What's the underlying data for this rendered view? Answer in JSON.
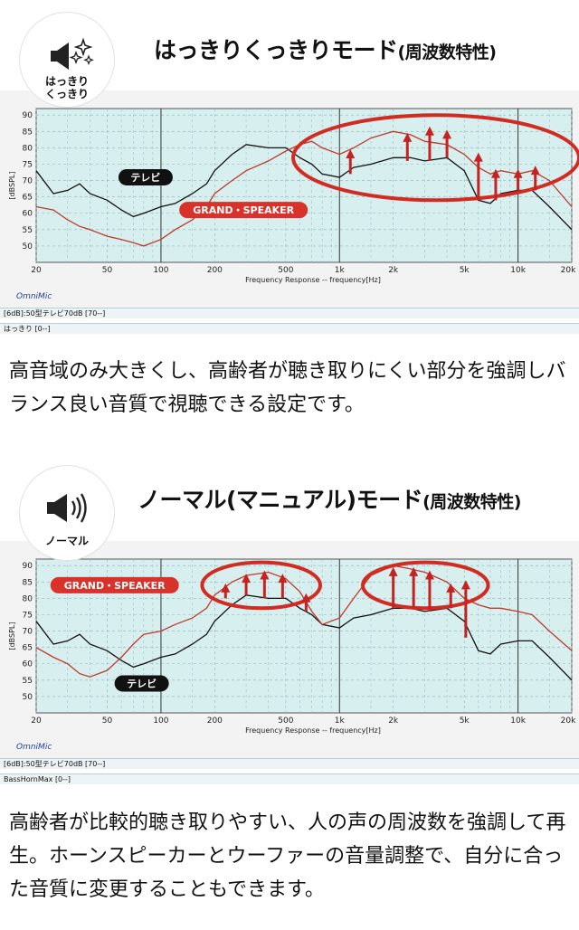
{
  "sections": [
    {
      "badge_label": "はっきり\nくっきり",
      "badge_icon": "speaker-sparkle-icon",
      "title_main": "はっきりくっきりモード",
      "title_paren": "(周波数特性)",
      "legend_rows": [
        "[6dB]:50型テレビ70dB [70--]",
        "はっきり [0--]"
      ],
      "description": "高音域のみ大きくし、高齢者が聴き取りにくい部分を強調しバランス良い音質で視聴できる設定です。"
    },
    {
      "badge_label": "ノーマル",
      "badge_icon": "speaker-sound-icon",
      "title_main": "ノーマル(マニュアル)モード",
      "title_paren": "(周波数特性)",
      "legend_rows": [
        "[6dB]:50型テレビ70dB [70--]",
        "BassHornMax [0--]"
      ],
      "description": "高齢者が比較的聴き取りやすい、人の声の周波数を強調して再生。ホーンスピーカーとウーファーの音量調整で、自分に合った音質に変更することもできます。"
    }
  ],
  "chart_data": [
    {
      "type": "line",
      "xscale": "log",
      "xlim": [
        20,
        20000
      ],
      "ylim": [
        45,
        92
      ],
      "xticks": [
        20,
        50,
        100,
        200,
        500,
        1000,
        2000,
        5000,
        10000,
        20000
      ],
      "xtick_labels": [
        "20",
        "50",
        "100",
        "200",
        "500",
        "1k",
        "2k",
        "5k",
        "10k",
        "20k"
      ],
      "yticks": [
        50,
        55,
        60,
        65,
        70,
        75,
        80,
        85,
        90
      ],
      "xlabel": "Frequency Response -- frequency[Hz]",
      "ylabel": "[dBSPL]",
      "brand": "OmniMic",
      "series": [
        {
          "name": "テレビ",
          "color": "#111111",
          "x": [
            20,
            25,
            30,
            35,
            40,
            50,
            60,
            70,
            80,
            100,
            120,
            150,
            180,
            200,
            250,
            300,
            400,
            500,
            600,
            700,
            800,
            1000,
            1200,
            1500,
            2000,
            2500,
            3000,
            4000,
            5000,
            6000,
            7000,
            8000,
            10000,
            12000,
            15000,
            20000
          ],
          "y": [
            73,
            66,
            67,
            69,
            66,
            64,
            61,
            59,
            60,
            62,
            63,
            66,
            69,
            73,
            78,
            81,
            80,
            80,
            77,
            75,
            72,
            71,
            74,
            75,
            77,
            77,
            76,
            77,
            73,
            64,
            63,
            66,
            67,
            67,
            62,
            55
          ]
        },
        {
          "name": "GRAND・SPEAKER",
          "color": "#c0392b",
          "x": [
            20,
            25,
            30,
            35,
            40,
            50,
            60,
            70,
            80,
            100,
            120,
            150,
            180,
            200,
            250,
            300,
            400,
            500,
            600,
            700,
            800,
            1000,
            1200,
            1500,
            2000,
            2500,
            3000,
            4000,
            5000,
            6000,
            7000,
            8000,
            10000,
            12000,
            15000,
            20000
          ],
          "y": [
            62,
            61,
            58,
            56,
            55,
            53,
            52,
            51,
            50,
            52,
            55,
            58,
            62,
            66,
            70,
            73,
            76,
            79,
            81,
            82,
            80,
            78,
            80,
            83,
            85,
            84,
            82,
            81,
            78,
            74,
            72,
            73,
            72,
            73,
            70,
            62
          ]
        }
      ],
      "arrows": [
        {
          "x": 1150,
          "y_from": 72,
          "y_to": 79
        },
        {
          "x": 2400,
          "y_from": 76,
          "y_to": 84
        },
        {
          "x": 3200,
          "y_from": 76,
          "y_to": 86
        },
        {
          "x": 4000,
          "y_from": 77,
          "y_to": 85
        },
        {
          "x": 6000,
          "y_from": 64,
          "y_to": 78
        },
        {
          "x": 7500,
          "y_from": 64,
          "y_to": 73
        },
        {
          "x": 10000,
          "y_from": 67,
          "y_to": 73
        },
        {
          "x": 12500,
          "y_from": 67,
          "y_to": 74
        }
      ],
      "labels": [
        {
          "text": "テレビ",
          "style": "black",
          "x": 82,
          "y": 71
        },
        {
          "text": "GRAND・SPEAKER",
          "style": "red",
          "x": 290,
          "y": 61
        }
      ],
      "highlight": {
        "x_from": 550,
        "x_to": 24000,
        "y_from": 64,
        "y_to": 90
      }
    },
    {
      "type": "line",
      "xscale": "log",
      "xlim": [
        20,
        20000
      ],
      "ylim": [
        45,
        92
      ],
      "xticks": [
        20,
        50,
        100,
        200,
        500,
        1000,
        2000,
        5000,
        10000,
        20000
      ],
      "xtick_labels": [
        "20",
        "50",
        "100",
        "200",
        "500",
        "1k",
        "2k",
        "5k",
        "10k",
        "20k"
      ],
      "yticks": [
        50,
        55,
        60,
        65,
        70,
        75,
        80,
        85,
        90
      ],
      "xlabel": "Frequency Response -- frequency[Hz]",
      "ylabel": "[dBSPL]",
      "brand": "OmniMic",
      "series": [
        {
          "name": "テレビ",
          "color": "#111111",
          "x": [
            20,
            25,
            30,
            35,
            40,
            50,
            60,
            70,
            80,
            100,
            120,
            150,
            180,
            200,
            250,
            300,
            400,
            500,
            600,
            700,
            800,
            1000,
            1200,
            1500,
            2000,
            2500,
            3000,
            4000,
            5000,
            6000,
            7000,
            8000,
            10000,
            12000,
            15000,
            20000
          ],
          "y": [
            73,
            66,
            67,
            69,
            66,
            64,
            61,
            59,
            60,
            62,
            63,
            66,
            69,
            73,
            78,
            81,
            80,
            80,
            77,
            75,
            72,
            71,
            74,
            75,
            77,
            77,
            76,
            77,
            73,
            64,
            63,
            66,
            67,
            67,
            62,
            55
          ]
        },
        {
          "name": "GRAND・SPEAKER",
          "color": "#c0392b",
          "x": [
            20,
            25,
            30,
            35,
            40,
            50,
            60,
            70,
            80,
            100,
            120,
            150,
            180,
            200,
            250,
            300,
            400,
            500,
            600,
            700,
            800,
            1000,
            1200,
            1500,
            2000,
            2500,
            3000,
            4000,
            5000,
            6000,
            7000,
            8000,
            10000,
            12000,
            15000,
            20000
          ],
          "y": [
            65,
            62,
            60,
            57,
            56,
            58,
            62,
            66,
            69,
            70,
            72,
            74,
            77,
            81,
            85,
            87,
            88,
            86,
            82,
            76,
            72,
            74,
            80,
            87,
            90,
            89,
            88,
            85,
            80,
            78,
            77,
            77,
            76,
            75,
            70,
            64
          ]
        }
      ],
      "arrows": [
        {
          "x": 230,
          "y_from": 80,
          "y_to": 84
        },
        {
          "x": 300,
          "y_from": 81,
          "y_to": 87
        },
        {
          "x": 380,
          "y_from": 80,
          "y_to": 88
        },
        {
          "x": 480,
          "y_from": 80,
          "y_to": 87
        },
        {
          "x": 650,
          "y_from": 76,
          "y_to": 81
        },
        {
          "x": 2000,
          "y_from": 77,
          "y_to": 89
        },
        {
          "x": 2600,
          "y_from": 77,
          "y_to": 89
        },
        {
          "x": 3200,
          "y_from": 76,
          "y_to": 88
        },
        {
          "x": 4200,
          "y_from": 77,
          "y_to": 84
        },
        {
          "x": 5100,
          "y_from": 68,
          "y_to": 85
        }
      ],
      "labels": [
        {
          "text": "GRAND・SPEAKER",
          "style": "red",
          "x": 55,
          "y": 84
        },
        {
          "text": "テレビ",
          "style": "black",
          "x": 78,
          "y": 54
        }
      ],
      "highlights": [
        {
          "x_from": 170,
          "x_to": 780,
          "y_from": 77,
          "y_to": 91
        },
        {
          "x_from": 1350,
          "x_to": 6800,
          "y_from": 77,
          "y_to": 91
        }
      ]
    }
  ]
}
